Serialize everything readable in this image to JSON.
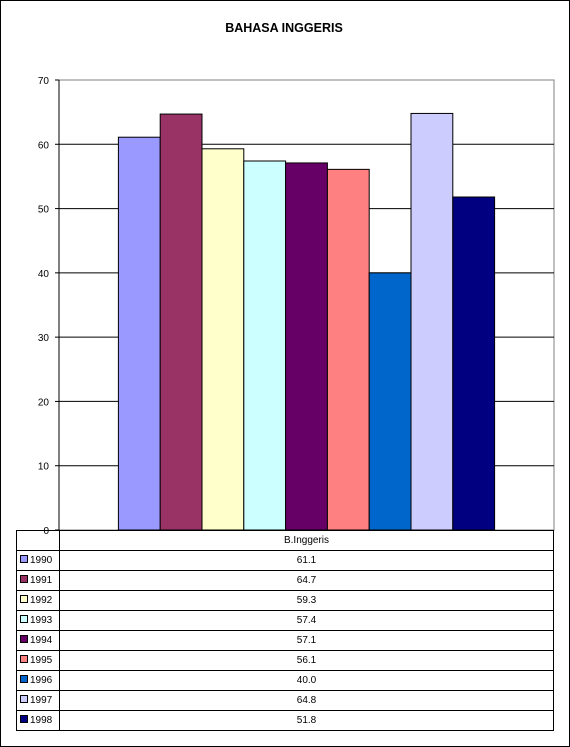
{
  "chart_data": {
    "type": "bar",
    "title": "BAHASA INGGERIS",
    "xlabel": "",
    "ylabel": "",
    "categories": [
      "B.Inggeris"
    ],
    "ylim": [
      0,
      70
    ],
    "yticks": [
      0,
      10,
      20,
      30,
      40,
      50,
      60,
      70
    ],
    "grid": true,
    "legend": "data-table",
    "series": [
      {
        "name": "1990",
        "values": [
          61.1
        ],
        "display": "61.1",
        "color": "#9999FF"
      },
      {
        "name": "1991",
        "values": [
          64.7
        ],
        "display": "64.7",
        "color": "#993366"
      },
      {
        "name": "1992",
        "values": [
          59.3
        ],
        "display": "59.3",
        "color": "#FFFFCC"
      },
      {
        "name": "1993",
        "values": [
          57.4
        ],
        "display": "57.4",
        "color": "#CCFFFF"
      },
      {
        "name": "1994",
        "values": [
          57.1
        ],
        "display": "57.1",
        "color": "#660066"
      },
      {
        "name": "1995",
        "values": [
          56.1
        ],
        "display": "56.1",
        "color": "#FF8080"
      },
      {
        "name": "1996",
        "values": [
          40.0
        ],
        "display": "40.0",
        "color": "#0066CC"
      },
      {
        "name": "1997",
        "values": [
          64.8
        ],
        "display": "64.8",
        "color": "#CCCCFF"
      },
      {
        "name": "1998",
        "values": [
          51.8
        ],
        "display": "51.8",
        "color": "#000080"
      }
    ]
  }
}
